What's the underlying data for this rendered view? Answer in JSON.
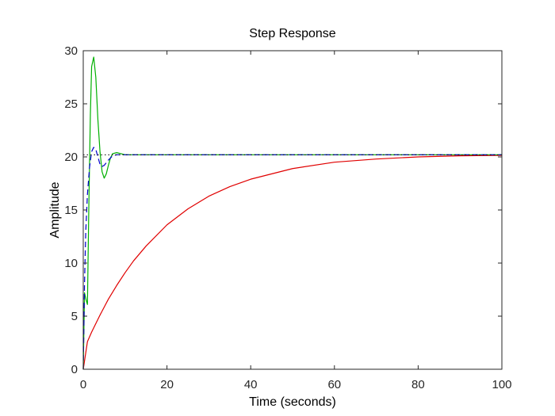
{
  "chart_data": {
    "type": "line",
    "title": "Step Response",
    "xlabel": "Time (seconds)",
    "ylabel": "Amplitude",
    "xlim": [
      0,
      100
    ],
    "ylim": [
      0,
      30
    ],
    "xticks": [
      0,
      20,
      40,
      60,
      80,
      100
    ],
    "yticks": [
      0,
      5,
      10,
      15,
      20,
      25,
      30
    ],
    "xtick_labels": [
      "0",
      "20",
      "40",
      "60",
      "80",
      "100"
    ],
    "ytick_labels": [
      "0",
      "5",
      "10",
      "15",
      "20",
      "25",
      "30"
    ],
    "grid": false,
    "steady_state_value": 20.2,
    "series": [
      {
        "name": "red",
        "color": "#e00000",
        "dash": "solid",
        "x": [
          0,
          1,
          2,
          4,
          6,
          8,
          10,
          12,
          15,
          20,
          25,
          30,
          35,
          40,
          50,
          60,
          70,
          80,
          90,
          100
        ],
        "y": [
          0,
          2.6,
          3.5,
          5.1,
          6.6,
          7.9,
          9.1,
          10.2,
          11.6,
          13.6,
          15.1,
          16.3,
          17.2,
          17.9,
          18.9,
          19.5,
          19.8,
          20.0,
          20.1,
          20.15
        ]
      },
      {
        "name": "green",
        "color": "#00b000",
        "dash": "solid",
        "x": [
          0,
          0.3,
          0.7,
          1.0,
          1.3,
          1.7,
          2.0,
          2.5,
          3.0,
          3.5,
          4.0,
          4.5,
          5.0,
          5.5,
          6.0,
          6.5,
          7.0,
          8.0,
          9.0,
          10.0,
          15,
          20,
          100
        ],
        "y": [
          0,
          7.2,
          6.5,
          6.1,
          14.5,
          24.0,
          28.5,
          29.4,
          27.5,
          23.5,
          20.5,
          18.6,
          18.0,
          18.4,
          19.2,
          19.9,
          20.3,
          20.4,
          20.3,
          20.2,
          20.2,
          20.2,
          20.2
        ]
      },
      {
        "name": "blue",
        "color": "#0000cc",
        "dash": "dashed",
        "x": [
          0,
          0.3,
          0.6,
          1.0,
          1.5,
          2.0,
          2.5,
          3.0,
          3.5,
          4.0,
          4.5,
          5.0,
          6.0,
          7.0,
          8.0,
          10,
          100
        ],
        "y": [
          0,
          8.0,
          13.0,
          16.5,
          19.0,
          20.5,
          20.9,
          20.7,
          20.0,
          19.3,
          19.1,
          19.2,
          19.7,
          20.1,
          20.2,
          20.2,
          20.2
        ]
      },
      {
        "name": "reference",
        "color": "#000000",
        "dash": "dotted",
        "x": [
          0,
          100
        ],
        "y": [
          20.2,
          20.2
        ]
      }
    ]
  }
}
